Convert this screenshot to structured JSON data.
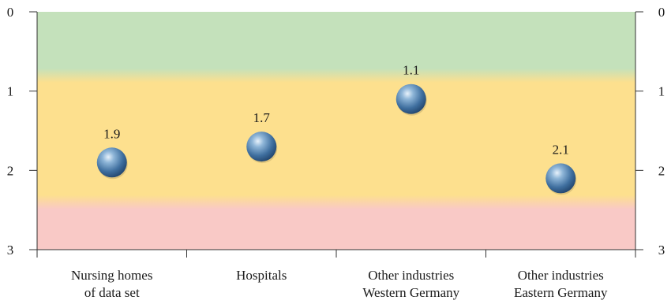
{
  "chart_data": {
    "type": "scatter",
    "title": "",
    "xlabel": "",
    "ylabel": "",
    "categories": [
      [
        "Nursing homes",
        "of data set"
      ],
      [
        "Hospitals"
      ],
      [
        "Other industries",
        "Western Germany"
      ],
      [
        "Other industries",
        "Eastern Germany"
      ]
    ],
    "values": [
      1.9,
      1.7,
      1.1,
      2.1
    ],
    "data_labels": [
      "1.9",
      "1.7",
      "1.1",
      "2.1"
    ],
    "y_ticks": [
      "0",
      "1",
      "2",
      "3"
    ],
    "ylim": [
      0,
      3
    ],
    "y_inverted": true,
    "grid": false,
    "background_bands": [
      {
        "from": 0,
        "to": 0.8,
        "color": "#c4e1bb"
      },
      {
        "from": 0.8,
        "to": 2.4,
        "color": "#fde08e"
      },
      {
        "from": 2.4,
        "to": 3,
        "color": "#f9c9c6"
      }
    ],
    "marker_color": "#3f6f9f"
  }
}
